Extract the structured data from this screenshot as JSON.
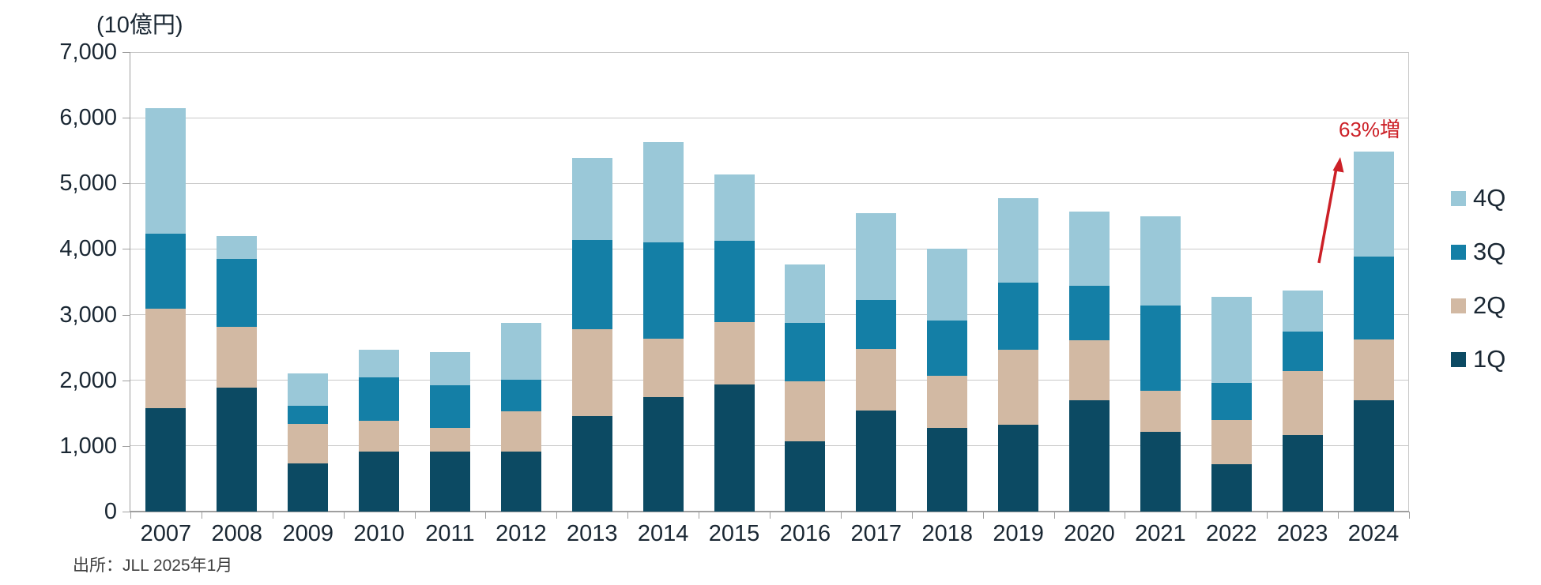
{
  "chart": {
    "unit_label": "(10億円)",
    "source": "出所：JLL 2025年1月",
    "annotation": {
      "text": "63%増",
      "color": "#cc2027"
    }
  },
  "chart_data": {
    "type": "bar",
    "stacked": true,
    "title": "(10億円)",
    "xlabel": "",
    "ylabel": "10億円",
    "ylim": [
      0,
      7000
    ],
    "ytick_interval": 1000,
    "ytick_labels": [
      "0",
      "1,000",
      "2,000",
      "3,000",
      "4,000",
      "5,000",
      "6,000",
      "7,000"
    ],
    "grid": true,
    "legend_position": "right",
    "legend_order": [
      "4Q",
      "3Q",
      "2Q",
      "1Q"
    ],
    "categories": [
      "2007",
      "2008",
      "2009",
      "2010",
      "2011",
      "2012",
      "2013",
      "2014",
      "2015",
      "2016",
      "2017",
      "2018",
      "2019",
      "2020",
      "2021",
      "2022",
      "2023",
      "2024"
    ],
    "series": [
      {
        "name": "1Q",
        "color": "#0c4a63",
        "values": [
          1580,
          1890,
          730,
          910,
          910,
          910,
          1460,
          1750,
          1940,
          1070,
          1540,
          1280,
          1320,
          1700,
          1220,
          720,
          1170,
          1700
        ]
      },
      {
        "name": "2Q",
        "color": "#d2b9a3",
        "values": [
          1510,
          930,
          600,
          470,
          360,
          620,
          1320,
          890,
          950,
          910,
          940,
          790,
          1140,
          910,
          620,
          680,
          970,
          920
        ]
      },
      {
        "name": "3Q",
        "color": "#147fa6",
        "values": [
          1140,
          1030,
          280,
          660,
          650,
          480,
          1360,
          1460,
          1240,
          900,
          740,
          840,
          1030,
          830,
          1300,
          560,
          600,
          1260
        ]
      },
      {
        "name": "4Q",
        "color": "#9ac8d8",
        "values": [
          1920,
          350,
          500,
          430,
          510,
          860,
          1250,
          1530,
          1010,
          890,
          1330,
          1090,
          1280,
          1130,
          1360,
          1310,
          630,
          1610
        ]
      }
    ],
    "totals": [
      6150,
      4200,
      2110,
      2470,
      2430,
      2870,
      5390,
      5630,
      5140,
      3770,
      4550,
      4000,
      4770,
      4570,
      4500,
      3270,
      3370,
      5490
    ],
    "annotations": [
      {
        "text": "63%増",
        "color": "#cc2027",
        "target_category": "2024",
        "meaning": "2024 total vs 2023 total"
      }
    ],
    "source": "出所：JLL 2025年1月"
  }
}
